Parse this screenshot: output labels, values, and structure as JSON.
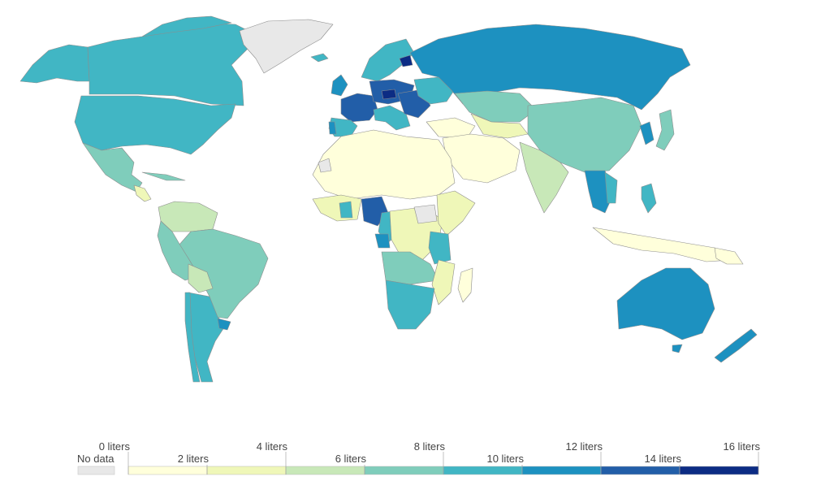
{
  "legend": {
    "no_data_label": "No data",
    "no_data_color": "#e8e8e8",
    "ticks_top": [
      "0 liters",
      "4 liters",
      "8 liters",
      "12 liters",
      "16 liters"
    ],
    "ticks_bottom": [
      "2 liters",
      "6 liters",
      "10 liters",
      "14 liters"
    ],
    "bins": [
      {
        "range": [
          0,
          2
        ],
        "color": "#ffffdb"
      },
      {
        "range": [
          2,
          4
        ],
        "color": "#eff7b8"
      },
      {
        "range": [
          4,
          6
        ],
        "color": "#c8e8b8"
      },
      {
        "range": [
          6,
          8
        ],
        "color": "#7fcdbb"
      },
      {
        "range": [
          8,
          10
        ],
        "color": "#41b6c4"
      },
      {
        "range": [
          10,
          12
        ],
        "color": "#1d91c0"
      },
      {
        "range": [
          12,
          14
        ],
        "color": "#225ea8"
      },
      {
        "range": [
          14,
          16
        ],
        "color": "#0c2c84"
      }
    ]
  },
  "map": {
    "ocean_color": "#ffffff",
    "border_color": "#9a9a9a"
  }
}
